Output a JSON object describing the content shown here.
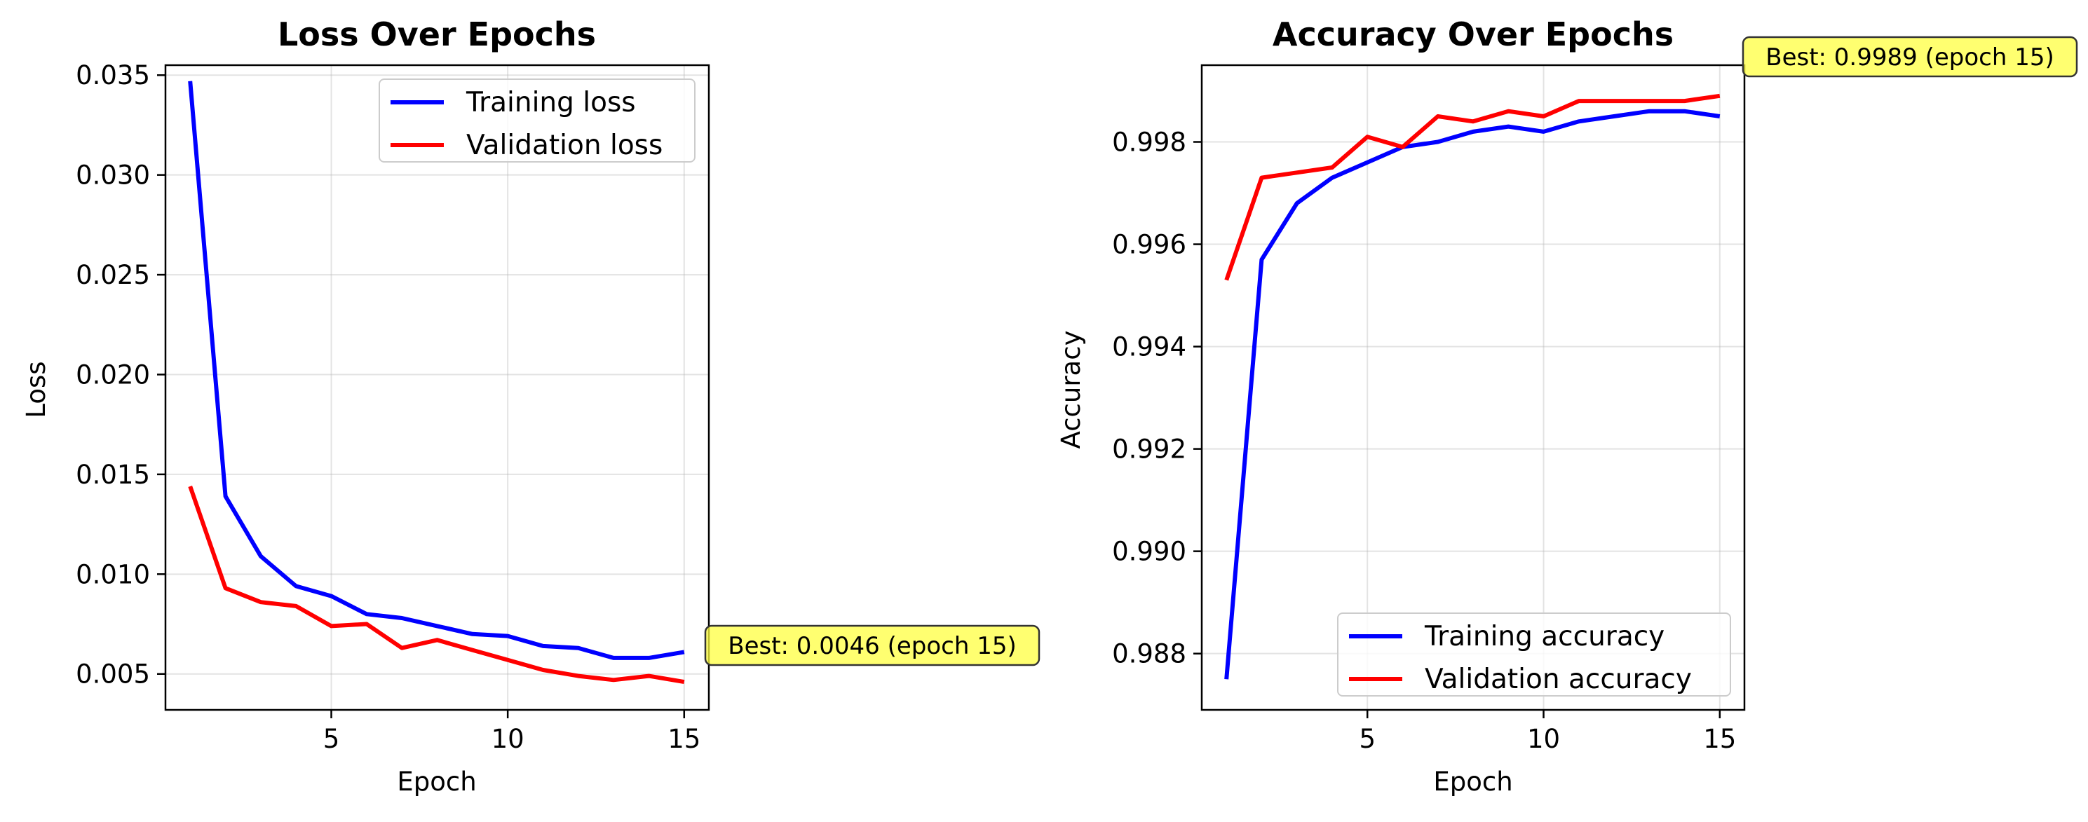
{
  "chart_data": [
    {
      "type": "line",
      "title": "Loss Over Epochs",
      "xlabel": "Epoch",
      "ylabel": "Loss",
      "xlim": [
        0.3,
        15.7
      ],
      "ylim": [
        0.0032,
        0.0355
      ],
      "xticks": [
        5,
        10,
        15
      ],
      "xtick_labels": [
        "5",
        "10",
        "15"
      ],
      "yticks": [
        0.005,
        0.01,
        0.015,
        0.02,
        0.025,
        0.03,
        0.035
      ],
      "ytick_labels": [
        "0.005",
        "0.010",
        "0.015",
        "0.020",
        "0.025",
        "0.030",
        "0.035"
      ],
      "grid": true,
      "legend_position": "upper right",
      "x": [
        1,
        2,
        3,
        4,
        5,
        6,
        7,
        8,
        9,
        10,
        11,
        12,
        13,
        14,
        15
      ],
      "series": [
        {
          "name": "Training loss",
          "color": "#0000ff",
          "values": [
            0.0347,
            0.0139,
            0.0109,
            0.0094,
            0.0089,
            0.008,
            0.0078,
            0.0074,
            0.007,
            0.0069,
            0.0064,
            0.0063,
            0.0058,
            0.0058,
            0.0061
          ]
        },
        {
          "name": "Validation loss",
          "color": "#ff0000",
          "values": [
            0.0144,
            0.0093,
            0.0086,
            0.0084,
            0.0074,
            0.0075,
            0.0063,
            0.0067,
            0.0062,
            0.0057,
            0.0052,
            0.0049,
            0.0047,
            0.0049,
            0.0046
          ]
        }
      ],
      "annotation": {
        "text": "Best: 0.0046 (epoch 15)",
        "background": "#ffff40"
      }
    },
    {
      "type": "line",
      "title": "Accuracy Over Epochs",
      "xlabel": "Epoch",
      "ylabel": "Accuracy",
      "xlim": [
        0.3,
        15.7
      ],
      "ylim": [
        0.9869,
        0.9995
      ],
      "xticks": [
        5,
        10,
        15
      ],
      "xtick_labels": [
        "5",
        "10",
        "15"
      ],
      "yticks": [
        0.988,
        0.99,
        0.992,
        0.994,
        0.996,
        0.998
      ],
      "ytick_labels": [
        "0.988",
        "0.990",
        "0.992",
        "0.994",
        "0.996",
        "0.998"
      ],
      "grid": true,
      "legend_position": "lower right",
      "x": [
        1,
        2,
        3,
        4,
        5,
        6,
        7,
        8,
        9,
        10,
        11,
        12,
        13,
        14,
        15
      ],
      "series": [
        {
          "name": "Training accuracy",
          "color": "#0000ff",
          "values": [
            0.9875,
            0.9957,
            0.9968,
            0.9973,
            0.9976,
            0.9979,
            0.998,
            0.9982,
            0.9983,
            0.9982,
            0.9984,
            0.9985,
            0.9986,
            0.9986,
            0.9985
          ]
        },
        {
          "name": "Validation accuracy",
          "color": "#ff0000",
          "values": [
            0.9953,
            0.9973,
            0.9974,
            0.9975,
            0.9981,
            0.9979,
            0.9985,
            0.9984,
            0.9986,
            0.9985,
            0.9988,
            0.9988,
            0.9988,
            0.9988,
            0.9989
          ]
        }
      ],
      "annotation": {
        "text": "Best: 0.9989 (epoch 15)",
        "background": "#ffff40"
      }
    }
  ]
}
